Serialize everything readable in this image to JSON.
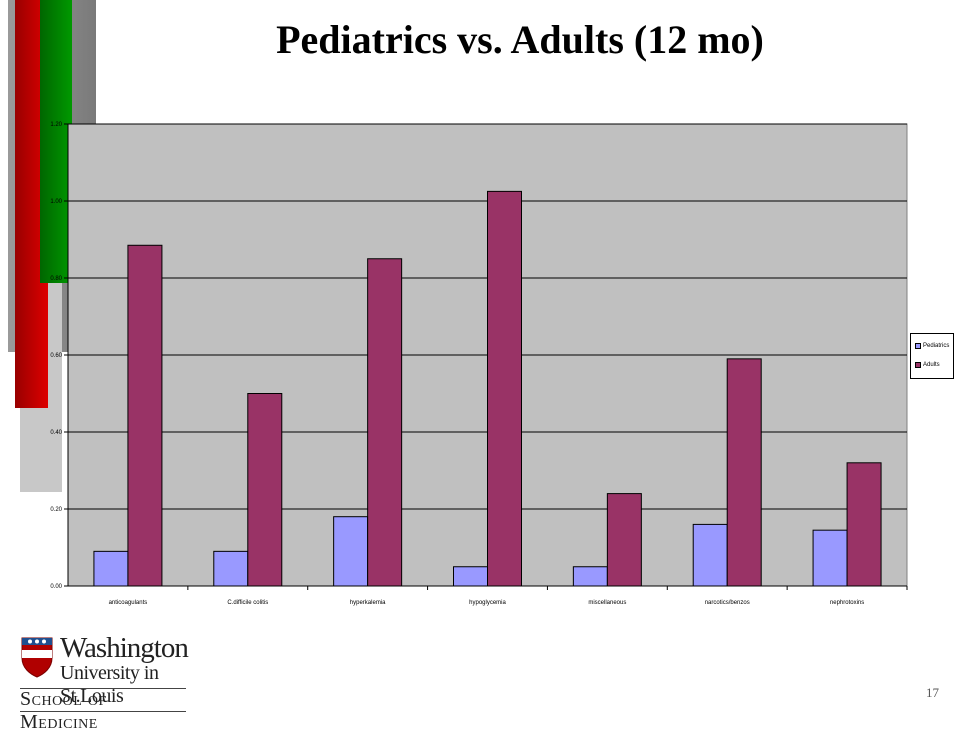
{
  "slide": {
    "title": "Pediatrics vs. Adults (12 mo)",
    "page_number": "17"
  },
  "logo": {
    "line1": "Washington",
    "line2": "University in St.Louis",
    "line3": "School of Medicine"
  },
  "colors": {
    "pediatrics": "#9999ff",
    "adults": "#993366",
    "plot_bg": "#c0c0c0",
    "accent_red": "#cc0000",
    "accent_green": "#008000"
  },
  "chart_data": {
    "type": "bar",
    "title": "",
    "xlabel": "",
    "ylabel": "",
    "categories": [
      "anticoagulants",
      "C.difficile colitis",
      "hyperkalemia",
      "hypoglycemia",
      "miscellaneous",
      "narcotics/benzos",
      "nephrotoxins"
    ],
    "series": [
      {
        "name": "Pediatrics",
        "values": [
          0.09,
          0.09,
          0.18,
          0.05,
          0.05,
          0.16,
          0.145
        ]
      },
      {
        "name": "Adults",
        "values": [
          0.885,
          0.5,
          0.85,
          1.025,
          0.24,
          0.59,
          0.32
        ]
      }
    ],
    "ylim": [
      0,
      1.2
    ],
    "yticks": [
      "0.00",
      "0.20",
      "0.40",
      "0.60",
      "0.80",
      "1.00",
      "1.20"
    ],
    "grid": true,
    "legend": "right"
  }
}
